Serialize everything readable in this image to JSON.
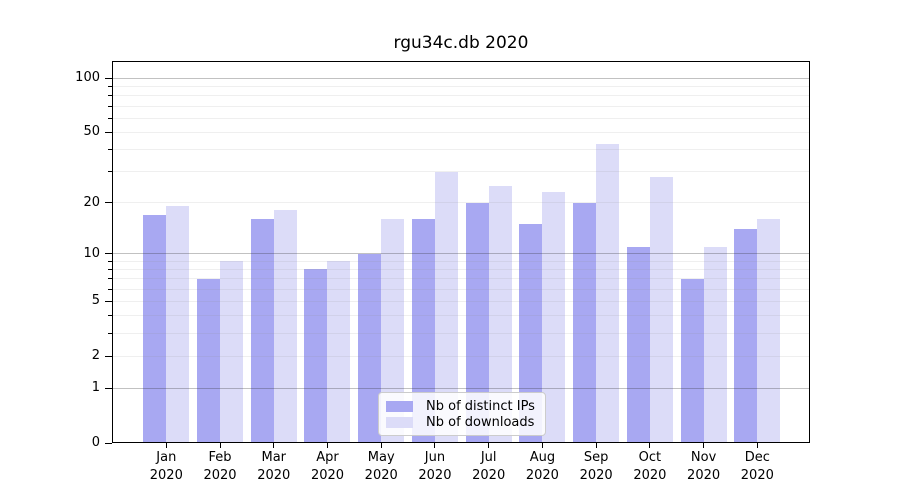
{
  "title": "rgu34c.db 2020",
  "chart_data": {
    "type": "bar",
    "title": "rgu34c.db 2020",
    "xlabel": "",
    "ylabel": "",
    "yscale": "symlog (position = log(1+value))",
    "ylim": [
      0,
      125
    ],
    "yticks": [
      0,
      1,
      2,
      5,
      10,
      20,
      50,
      100
    ],
    "ytick_labels": [
      "0",
      "1",
      "2",
      "5",
      "10",
      "20",
      "50",
      "100"
    ],
    "minor_grid_values": [
      2,
      3,
      4,
      5,
      6,
      7,
      8,
      9,
      20,
      30,
      40,
      50,
      60,
      70,
      80,
      90
    ],
    "major_grid_values": [
      1,
      10,
      100
    ],
    "grid": true,
    "categories": [
      "Jan",
      "Feb",
      "Mar",
      "Apr",
      "May",
      "Jun",
      "Jul",
      "Aug",
      "Sep",
      "Oct",
      "Nov",
      "Dec"
    ],
    "xtick_year": "2020",
    "series": [
      {
        "name": "Nb of distinct IPs",
        "color": "#a8a8f2",
        "values": [
          17,
          7,
          16,
          8,
          10,
          16,
          20,
          15,
          20,
          11,
          7,
          14
        ]
      },
      {
        "name": "Nb of downloads",
        "color": "#dcdcf8",
        "values": [
          19,
          9,
          18,
          9,
          16,
          30,
          25,
          23,
          43,
          28,
          11,
          16
        ]
      }
    ],
    "legend_position": "lower center",
    "background_color": "#ffffff"
  }
}
